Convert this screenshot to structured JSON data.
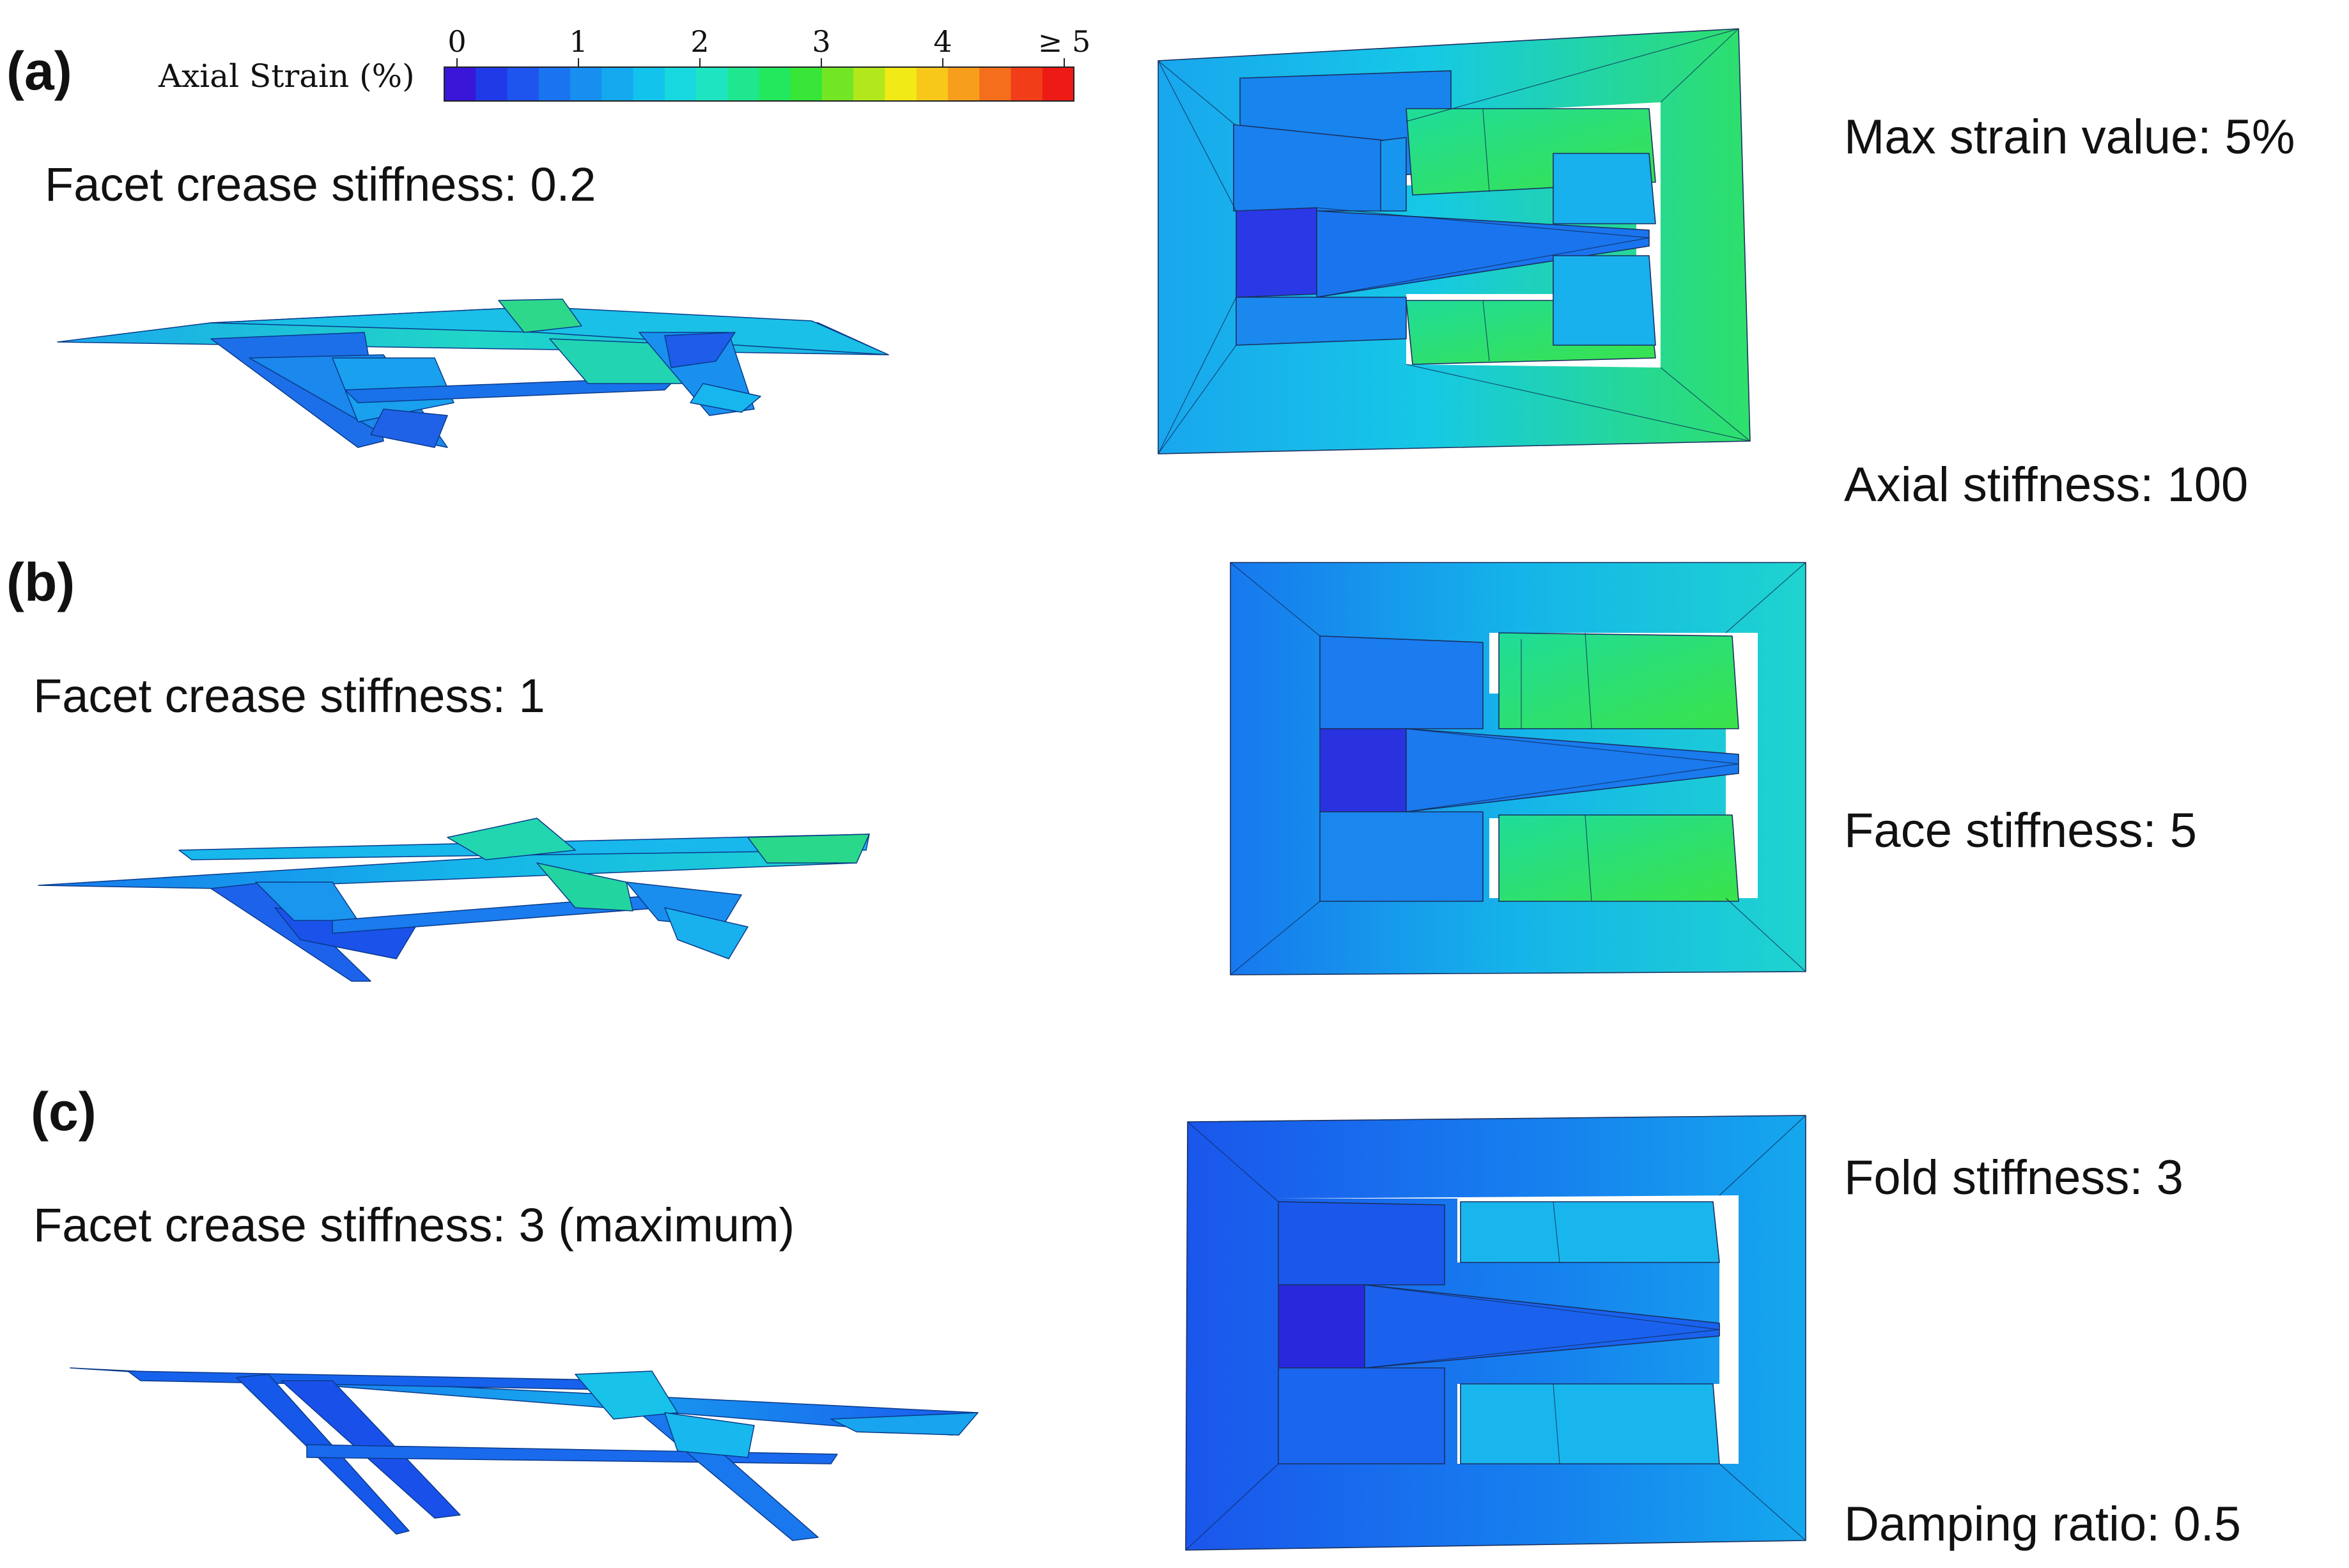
{
  "panels": {
    "a": {
      "letter": "(a)",
      "facet_label": "Facet crease stiffness: 0.2"
    },
    "b": {
      "letter": "(b)",
      "facet_label": "Facet crease stiffness: 1"
    },
    "c": {
      "letter": "(c)",
      "facet_label": "Facet crease stiffness: 3 (maximum)"
    }
  },
  "colorbar": {
    "title": "Axial Strain (%)",
    "ticks": [
      "0",
      "1",
      "2",
      "3",
      "4",
      "≥ 5"
    ],
    "colors": [
      "#3a16d9",
      "#1f3be8",
      "#1d55ee",
      "#1a74f0",
      "#168ff0",
      "#14a8ee",
      "#12c3eb",
      "#17d8df",
      "#1ee4c2",
      "#1fe78f",
      "#22e85e",
      "#37e637",
      "#73e624",
      "#b2e81b",
      "#f2ea16",
      "#f7c81a",
      "#f79e1c",
      "#f56e1c",
      "#f23e18",
      "#ee1a16"
    ]
  },
  "parameters": {
    "max_strain": "Max strain value: 5%",
    "axial_stiffness": "Axial stiffness: 100",
    "face_stiffness": "Face stiffness: 5",
    "fold_stiffness": "Fold stiffness: 3",
    "damping_ratio": "Damping ratio: 0.5"
  }
}
